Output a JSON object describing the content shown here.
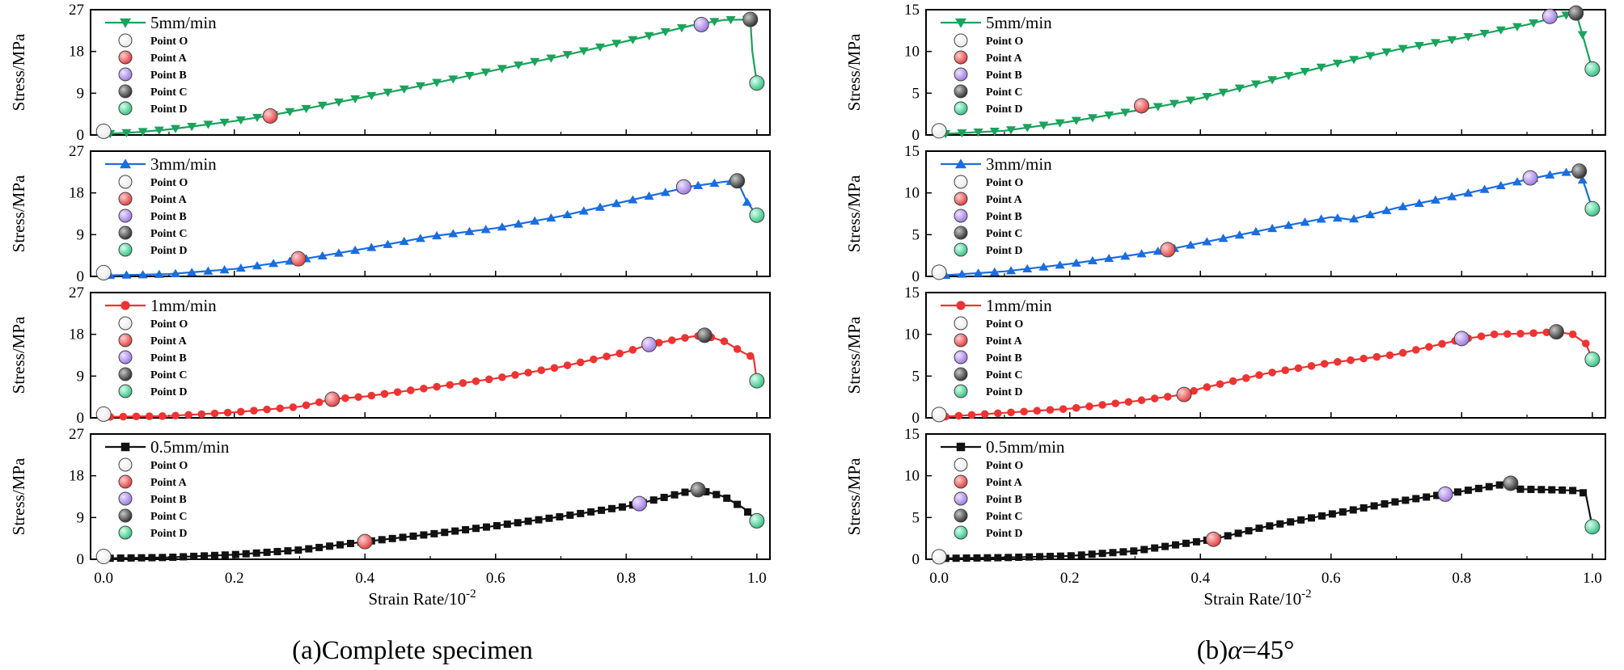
{
  "figure": {
    "left_caption": "(a)Complete specimen",
    "right_caption_prefix": "(b)",
    "right_caption_symbol": "α",
    "right_caption_suffix": "=45°"
  },
  "chart_data": [
    {
      "type": "line",
      "panel": "a",
      "title": "(a)Complete specimen",
      "xlabel": "Strain Rate/10",
      "xlabel_exponent": "-2",
      "xlim": [
        -0.02,
        1.02
      ],
      "xticks": [
        "0.0",
        "0.2",
        "0.4",
        "0.6",
        "0.8",
        "1.0"
      ],
      "point_legend": [
        "Point O",
        "Point A",
        "Point B",
        "Point C",
        "Point D"
      ],
      "point_colors": [
        "#ffffff",
        "#ff6b6b",
        "#b79bf0",
        "#555555",
        "#5fe0a0"
      ],
      "subplots": [
        {
          "series": "5mm/min",
          "color": "#1aa35c",
          "marker": "triangle-down",
          "ylabel": "Stress/MPa",
          "ylim": [
            0,
            27
          ],
          "yticks": [
            "0",
            "9",
            "18",
            "27"
          ],
          "x": [
            0.0,
            0.05,
            0.1,
            0.2,
            0.25,
            0.3,
            0.4,
            0.5,
            0.6,
            0.7,
            0.8,
            0.9,
            0.95,
            0.99,
            0.993,
            1.0
          ],
          "y": [
            0.2,
            0.6,
            1.2,
            3.0,
            4.1,
            5.4,
            8.2,
            11.0,
            14.0,
            17.0,
            20.2,
            23.6,
            24.8,
            24.9,
            18.0,
            11.2
          ],
          "points": {
            "O": [
              0.0,
              0.8
            ],
            "A": [
              0.255,
              4.1
            ],
            "B": [
              0.915,
              23.8
            ],
            "C": [
              0.99,
              24.9
            ],
            "D": [
              1.0,
              11.2
            ]
          }
        },
        {
          "series": "3mm/min",
          "color": "#1a6de0",
          "marker": "triangle-up",
          "ylabel": "Stress/MPa",
          "ylim": [
            0,
            27
          ],
          "yticks": [
            "0",
            "9",
            "18",
            "27"
          ],
          "x": [
            0.0,
            0.1,
            0.2,
            0.3,
            0.4,
            0.5,
            0.6,
            0.7,
            0.8,
            0.9,
            0.95,
            0.97,
            0.985,
            1.0
          ],
          "y": [
            0.2,
            0.5,
            1.6,
            3.6,
            6.0,
            8.6,
            10.4,
            13.0,
            16.2,
            19.4,
            20.4,
            20.6,
            16.0,
            13.2
          ],
          "points": {
            "O": [
              0.0,
              0.8
            ],
            "A": [
              0.298,
              3.8
            ],
            "B": [
              0.888,
              19.3
            ],
            "C": [
              0.97,
              20.6
            ],
            "D": [
              1.0,
              13.2
            ]
          }
        },
        {
          "series": "1mm/min",
          "color": "#ee3333",
          "marker": "circle",
          "ylabel": "Stress/MPa",
          "ylim": [
            0,
            27
          ],
          "yticks": [
            "0",
            "9",
            "18",
            "27"
          ],
          "x": [
            0.0,
            0.1,
            0.2,
            0.3,
            0.35,
            0.4,
            0.5,
            0.6,
            0.7,
            0.8,
            0.835,
            0.9,
            0.92,
            0.95,
            0.98,
            0.995,
            1.0
          ],
          "y": [
            0.2,
            0.4,
            1.2,
            2.4,
            4.0,
            4.6,
            6.5,
            8.5,
            11.0,
            14.2,
            15.8,
            17.5,
            17.8,
            16.5,
            14.0,
            13.0,
            8.0
          ],
          "points": {
            "O": [
              0.0,
              0.8
            ],
            "A": [
              0.35,
              4.0
            ],
            "B": [
              0.835,
              15.8
            ],
            "C": [
              0.92,
              17.8
            ],
            "D": [
              1.0,
              8.0
            ]
          }
        },
        {
          "series": "0.5mm/min",
          "color": "#111111",
          "marker": "square",
          "ylabel": "Stress/MPa",
          "ylim": [
            0,
            27
          ],
          "yticks": [
            "0",
            "9",
            "18",
            "27"
          ],
          "x": [
            0.0,
            0.1,
            0.2,
            0.3,
            0.4,
            0.5,
            0.6,
            0.7,
            0.8,
            0.82,
            0.9,
            0.91,
            0.95,
            0.98,
            1.0
          ],
          "y": [
            0.2,
            0.4,
            1.0,
            2.0,
            3.8,
            5.4,
            7.2,
            9.2,
            11.4,
            12.0,
            14.8,
            15.0,
            13.5,
            11.0,
            8.3
          ],
          "points": {
            "O": [
              0.0,
              0.6
            ],
            "A": [
              0.4,
              3.8
            ],
            "B": [
              0.82,
              12.0
            ],
            "C": [
              0.91,
              15.0
            ],
            "D": [
              1.0,
              8.3
            ]
          }
        }
      ]
    },
    {
      "type": "line",
      "panel": "b",
      "title": "(b)α=45°",
      "xlabel": "Strain Rate/10",
      "xlabel_exponent": "-2",
      "xlim": [
        -0.02,
        1.02
      ],
      "xticks": [
        "0.0",
        "0.2",
        "0.4",
        "0.6",
        "0.8",
        "1.0"
      ],
      "point_legend": [
        "Point O",
        "Point A",
        "Point B",
        "Point C",
        "Point D"
      ],
      "point_colors": [
        "#ffffff",
        "#ff6b6b",
        "#b79bf0",
        "#555555",
        "#5fe0a0"
      ],
      "subplots": [
        {
          "series": "5mm/min",
          "color": "#1aa35c",
          "marker": "triangle-down",
          "ylabel": "Stress/MPa",
          "ylim": [
            0,
            15
          ],
          "yticks": [
            "0",
            "5",
            "10",
            "15"
          ],
          "x": [
            0.0,
            0.1,
            0.2,
            0.3,
            0.35,
            0.4,
            0.5,
            0.6,
            0.7,
            0.8,
            0.9,
            0.94,
            0.975,
            0.985,
            1.0
          ],
          "y": [
            0.1,
            0.5,
            1.6,
            2.9,
            3.6,
            4.4,
            6.4,
            8.4,
            10.2,
            11.6,
            13.2,
            14.0,
            14.6,
            12.0,
            7.9
          ],
          "points": {
            "O": [
              0.0,
              0.5
            ],
            "A": [
              0.31,
              3.5
            ],
            "B": [
              0.935,
              14.2
            ],
            "C": [
              0.975,
              14.6
            ],
            "D": [
              1.0,
              7.9
            ]
          }
        },
        {
          "series": "3mm/min",
          "color": "#1a6de0",
          "marker": "triangle-up",
          "ylabel": "Stress/MPa",
          "ylim": [
            0,
            15
          ],
          "yticks": [
            "0",
            "5",
            "10",
            "15"
          ],
          "x": [
            0.0,
            0.1,
            0.2,
            0.3,
            0.35,
            0.4,
            0.5,
            0.6,
            0.63,
            0.7,
            0.8,
            0.9,
            0.95,
            0.98,
            0.99,
            1.0
          ],
          "y": [
            0.1,
            0.6,
            1.5,
            2.6,
            3.2,
            4.0,
            5.6,
            7.1,
            6.8,
            8.2,
            9.8,
            11.6,
            12.4,
            12.6,
            10.5,
            8.1
          ],
          "points": {
            "O": [
              0.0,
              0.5
            ],
            "A": [
              0.35,
              3.2
            ],
            "B": [
              0.905,
              11.8
            ],
            "C": [
              0.98,
              12.6
            ],
            "D": [
              1.0,
              8.1
            ]
          }
        },
        {
          "series": "1mm/min",
          "color": "#ee3333",
          "marker": "circle",
          "ylabel": "Stress/MPa",
          "ylim": [
            0,
            15
          ],
          "yticks": [
            "0",
            "5",
            "10",
            "15"
          ],
          "x": [
            0.0,
            0.1,
            0.2,
            0.3,
            0.375,
            0.4,
            0.5,
            0.6,
            0.7,
            0.8,
            0.85,
            0.9,
            0.945,
            0.97,
            0.99,
            1.0
          ],
          "y": [
            0.1,
            0.6,
            1.1,
            2.0,
            2.8,
            3.5,
            5.3,
            6.6,
            7.6,
            9.4,
            10.0,
            10.1,
            10.3,
            10.0,
            8.9,
            7.0
          ],
          "points": {
            "O": [
              0.0,
              0.4
            ],
            "A": [
              0.375,
              2.8
            ],
            "B": [
              0.8,
              9.5
            ],
            "C": [
              0.945,
              10.3
            ],
            "D": [
              1.0,
              7.0
            ]
          }
        },
        {
          "series": "0.5mm/min",
          "color": "#111111",
          "marker": "square",
          "ylabel": "Stress/MPa",
          "ylim": [
            0,
            15
          ],
          "yticks": [
            "0",
            "5",
            "10",
            "15"
          ],
          "x": [
            0.0,
            0.1,
            0.2,
            0.3,
            0.42,
            0.5,
            0.6,
            0.7,
            0.775,
            0.85,
            0.875,
            0.885,
            0.95,
            0.98,
            0.99,
            1.0
          ],
          "y": [
            0.1,
            0.2,
            0.4,
            1.0,
            2.4,
            3.9,
            5.4,
            6.9,
            7.8,
            8.8,
            9.1,
            8.4,
            8.3,
            8.2,
            7.8,
            3.9
          ],
          "points": {
            "O": [
              0.0,
              0.3
            ],
            "A": [
              0.42,
              2.4
            ],
            "B": [
              0.775,
              7.8
            ],
            "C": [
              0.875,
              9.1
            ],
            "D": [
              1.0,
              3.9
            ]
          }
        }
      ]
    }
  ]
}
